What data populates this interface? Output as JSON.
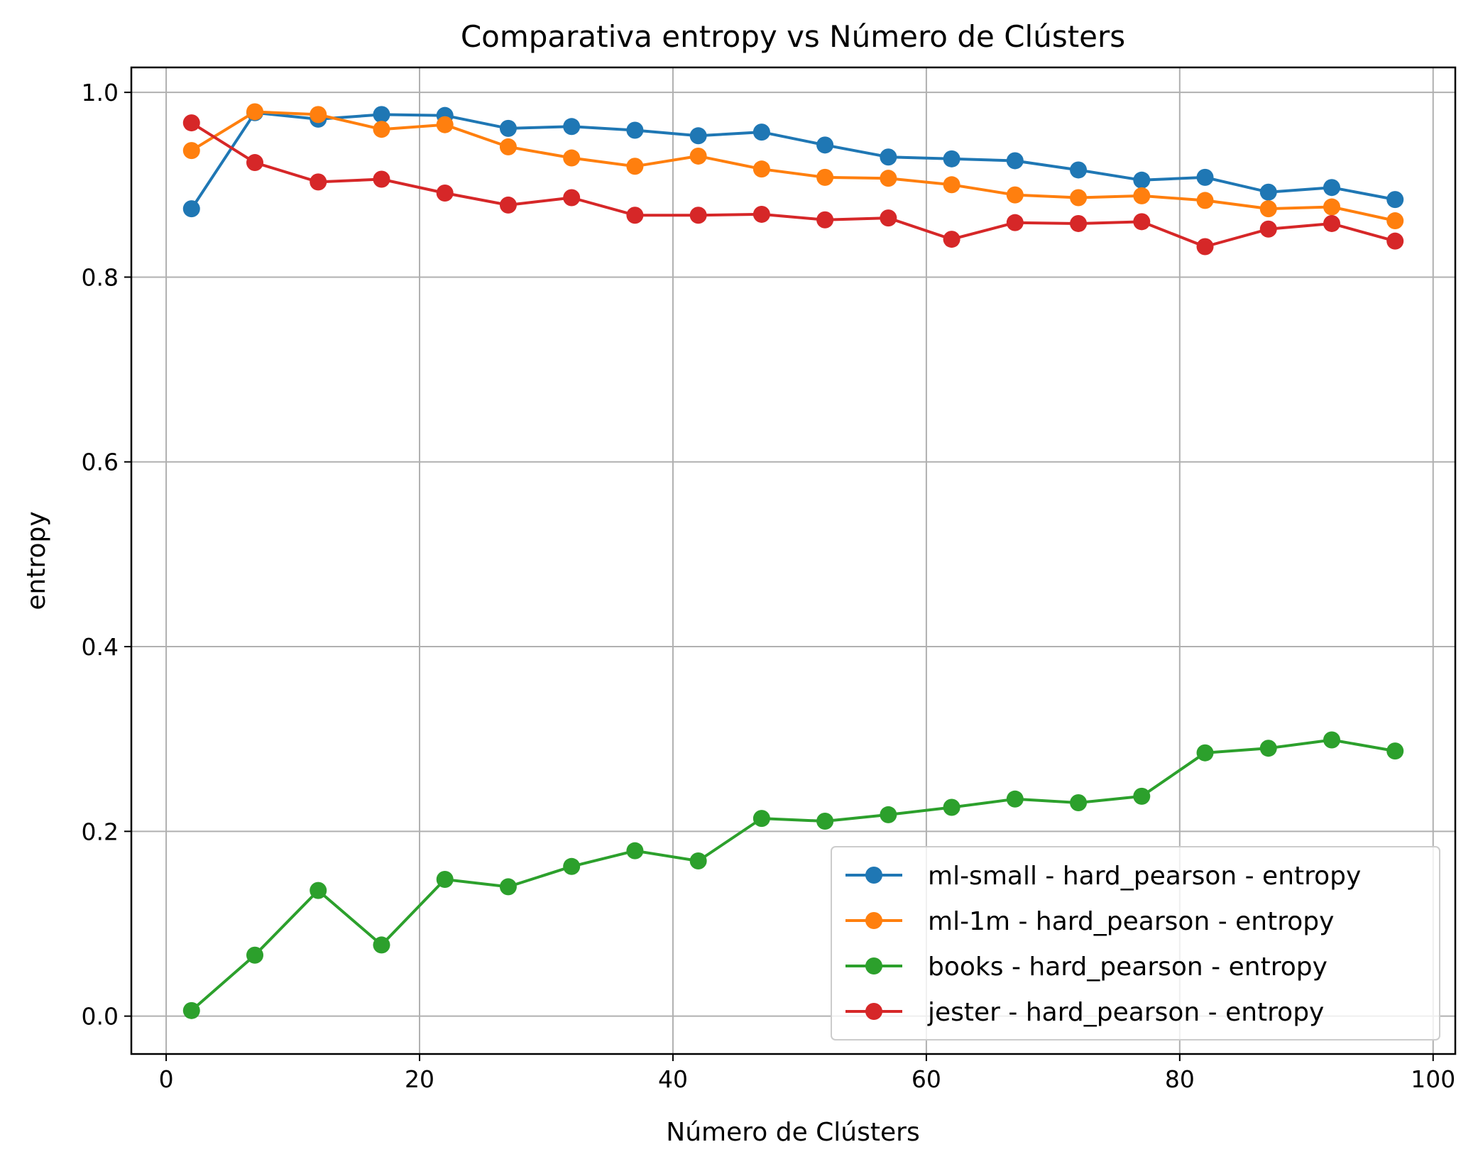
{
  "chart_data": {
    "type": "line",
    "title": "Comparativa entropy vs Número de Clústers",
    "xlabel": "Número de Clústers",
    "ylabel": "entropy",
    "xlim": [
      -2.75,
      101.75
    ],
    "ylim": [
      -0.041,
      1.027
    ],
    "xticks": [
      0,
      20,
      40,
      60,
      80,
      100
    ],
    "xtick_labels": [
      "0",
      "20",
      "40",
      "60",
      "80",
      "100"
    ],
    "yticks": [
      0.0,
      0.2,
      0.4,
      0.6,
      0.8,
      1.0
    ],
    "ytick_labels": [
      "0.0",
      "0.2",
      "0.4",
      "0.6",
      "0.8",
      "1.0"
    ],
    "grid": true,
    "legend_position": "lower-right",
    "marker": "circle",
    "x": [
      2,
      7,
      12,
      17,
      22,
      27,
      32,
      37,
      42,
      47,
      52,
      57,
      62,
      67,
      72,
      77,
      82,
      87,
      92,
      97
    ],
    "series": [
      {
        "name": "ml-small - hard_pearson - entropy",
        "color": "#1f77b4",
        "values": [
          0.874,
          0.978,
          0.971,
          0.976,
          0.975,
          0.961,
          0.963,
          0.959,
          0.953,
          0.957,
          0.943,
          0.93,
          0.928,
          0.926,
          0.916,
          0.905,
          0.908,
          0.892,
          0.897,
          0.884
        ]
      },
      {
        "name": "ml-1m - hard_pearson - entropy",
        "color": "#ff7f0e",
        "values": [
          0.937,
          0.979,
          0.976,
          0.96,
          0.965,
          0.941,
          0.929,
          0.92,
          0.931,
          0.917,
          0.908,
          0.907,
          0.9,
          0.889,
          0.886,
          0.888,
          0.883,
          0.874,
          0.876,
          0.861
        ]
      },
      {
        "name": "books - hard_pearson - entropy",
        "color": "#2ca02c",
        "values": [
          0.006,
          0.066,
          0.136,
          0.077,
          0.148,
          0.14,
          0.162,
          0.179,
          0.168,
          0.214,
          0.211,
          0.218,
          0.226,
          0.235,
          0.231,
          0.238,
          0.285,
          0.29,
          0.299,
          0.287
        ]
      },
      {
        "name": "jester - hard_pearson - entropy",
        "color": "#d62728",
        "values": [
          0.967,
          0.924,
          0.903,
          0.906,
          0.891,
          0.878,
          0.886,
          0.867,
          0.867,
          0.868,
          0.862,
          0.864,
          0.841,
          0.859,
          0.858,
          0.86,
          0.833,
          0.852,
          0.858,
          0.839
        ]
      }
    ]
  }
}
